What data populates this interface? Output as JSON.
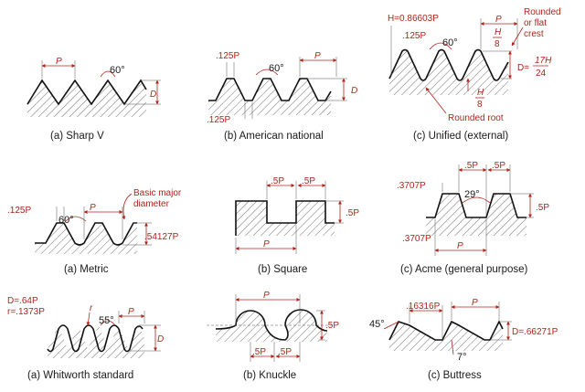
{
  "colors": {
    "annotation": "#b0241b",
    "profile": "#111111",
    "background": "#ffffff"
  },
  "panels": [
    {
      "id": "sharp-v",
      "caption": "(a) Sharp V",
      "labels": [
        "P",
        "60°",
        "D"
      ]
    },
    {
      "id": "american-national",
      "caption": "(b) American national",
      "labels": [
        ".125P",
        "P",
        "60°",
        "D",
        ".125P"
      ]
    },
    {
      "id": "unified-external",
      "caption": "(c) Unified (external)",
      "labels": [
        "H=0.86603P",
        "P",
        ".125P",
        "60°",
        "H",
        "8",
        "D=",
        "17H",
        "24",
        "H",
        "8"
      ],
      "notes": [
        "Rounded",
        "or flat",
        "crest",
        "Rounded root"
      ]
    },
    {
      "id": "metric",
      "caption": "(a) Metric",
      "labels": [
        ".125P",
        "60°",
        "P",
        ".54127P"
      ],
      "notes": [
        "Basic major",
        "diameter"
      ]
    },
    {
      "id": "square",
      "caption": "(b) Square",
      "labels": [
        ".5P",
        ".5P",
        ".5P",
        "P"
      ]
    },
    {
      "id": "acme",
      "caption": "(c) Acme (general purpose)",
      "labels": [
        ".3707P",
        ".5P",
        ".5P",
        "29°",
        ".5P",
        ".3707P",
        "P"
      ]
    },
    {
      "id": "whitworth",
      "caption": "(a) Whitworth standard",
      "labels": [
        "D=.64P",
        "r=.1373P",
        "r",
        "55°",
        "P",
        "D"
      ]
    },
    {
      "id": "knuckle",
      "caption": "(b) Knuckle",
      "labels": [
        "P",
        ".5P",
        ".5P",
        ".5P"
      ]
    },
    {
      "id": "buttress",
      "caption": "(c) Buttress",
      "labels": [
        ".16316P",
        "P",
        "45°",
        "D=.66271P",
        "7°"
      ]
    }
  ]
}
